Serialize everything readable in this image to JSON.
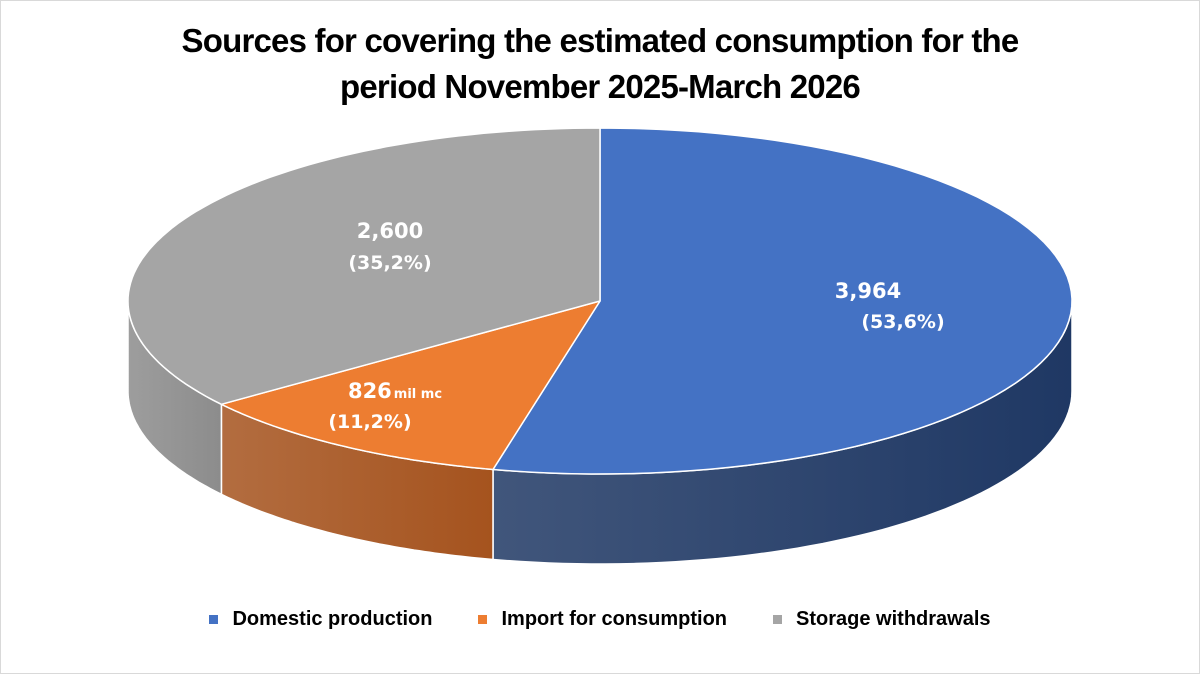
{
  "chart_data": {
    "type": "pie",
    "style": "3d",
    "title_lines": [
      "Sources for covering the estimated consumption for the",
      "period November 2025-March 2026"
    ],
    "unit": "mil mc",
    "slices": [
      {
        "name": "Domestic production",
        "value": 3964,
        "label": "3,964",
        "percent_label": "(53,6%)",
        "percent": 53.6,
        "color": "#4472C4",
        "side_color": "#1F3864",
        "unit_label": ""
      },
      {
        "name": "Import for consumption",
        "value": 826,
        "label": "826",
        "percent_label": "(11,2%)",
        "percent": 11.2,
        "color": "#ED7D31",
        "side_color": "#A5531E",
        "unit_label": "mil mc"
      },
      {
        "name": "Storage withdrawals",
        "value": 2600,
        "label": "2,600",
        "percent_label": "(35,2%)",
        "percent": 35.2,
        "color": "#A5A5A5",
        "side_color": "#8C8C8C",
        "unit_label": ""
      }
    ],
    "start_angle": "12 o'clock, clockwise",
    "legend_position": "bottom"
  }
}
